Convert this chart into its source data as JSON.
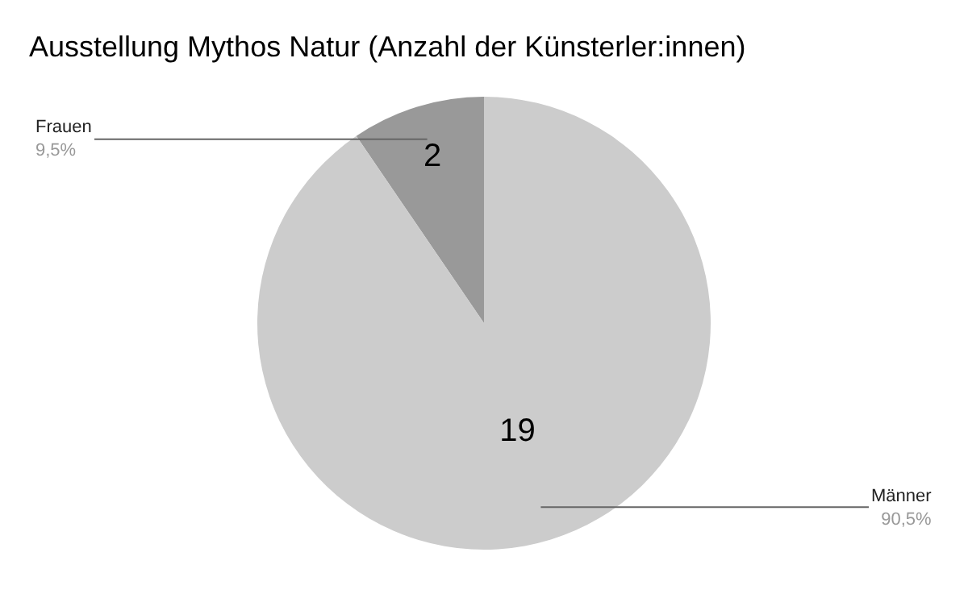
{
  "chart_data": {
    "type": "pie",
    "title": "Ausstellung Mythos Natur (Anzahl der Künsterler:innen)",
    "categories": [
      "Frauen",
      "Männer"
    ],
    "values": [
      2,
      19
    ],
    "colors": [
      "#999999",
      "#cccccc"
    ],
    "data_labels": true,
    "annotations": [
      "9,5%",
      "90,5%"
    ],
    "legend": false
  }
}
